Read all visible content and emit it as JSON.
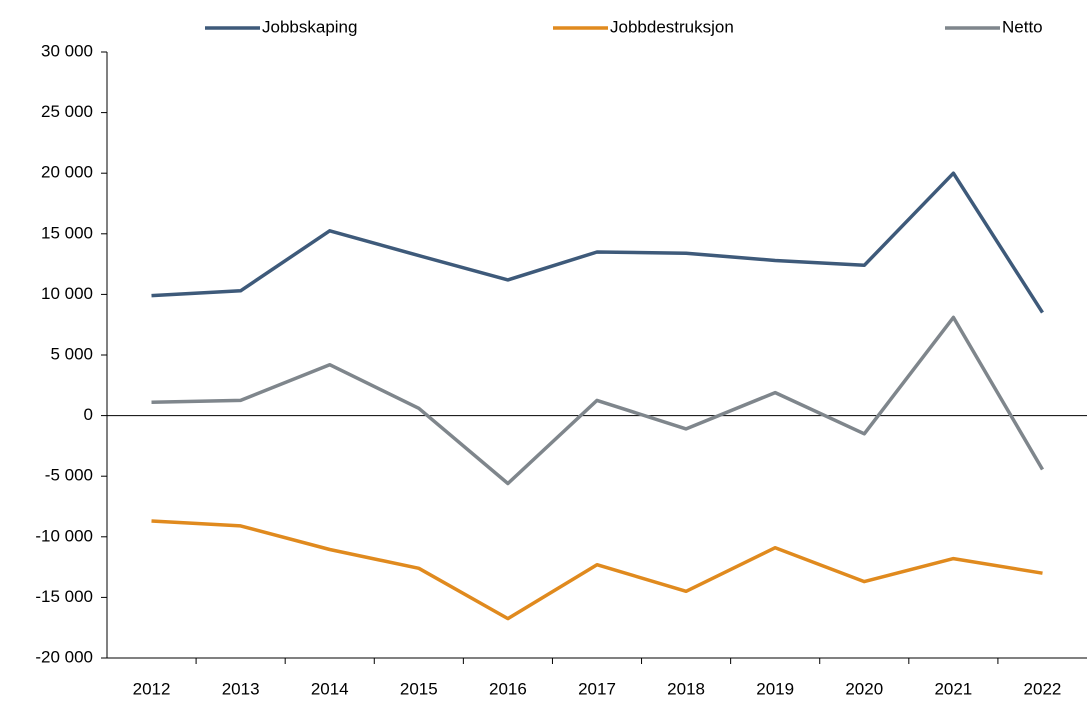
{
  "chart_data": {
    "type": "line",
    "categories": [
      "2012",
      "2013",
      "2014",
      "2015",
      "2016",
      "2017",
      "2018",
      "2019",
      "2020",
      "2021",
      "2022"
    ],
    "series": [
      {
        "name": "Jobbskaping",
        "color": "#3e5a7a",
        "values": [
          9900,
          10300,
          15250,
          13200,
          11200,
          13500,
          13400,
          12800,
          12400,
          20000,
          8500
        ]
      },
      {
        "name": "Jobbdestruksjon",
        "color": "#e08a1e",
        "values": [
          -8700,
          -9100,
          -11050,
          -12600,
          -16750,
          -12300,
          -14500,
          -10900,
          -13700,
          -11800,
          -13000
        ]
      },
      {
        "name": "Netto",
        "color": "#7f868c",
        "values": [
          1100,
          1250,
          4200,
          600,
          -5600,
          1250,
          -1100,
          1900,
          -1500,
          8100,
          -4450
        ]
      }
    ],
    "ylim": [
      -20000,
      30000
    ],
    "yticks": [
      {
        "value": -20000,
        "label": "-20 000"
      },
      {
        "value": -15000,
        "label": "-15 000"
      },
      {
        "value": -10000,
        "label": "-10 000"
      },
      {
        "value": -5000,
        "label": "-5 000"
      },
      0,
      {
        "value": 5000,
        "label": "5 000"
      },
      {
        "value": 10000,
        "label": "10 000"
      },
      {
        "value": 15000,
        "label": "15 000"
      },
      {
        "value": 20000,
        "label": "20 000"
      },
      {
        "value": 25000,
        "label": "25 000"
      },
      {
        "value": 30000,
        "label": "30 000"
      }
    ],
    "grid": false,
    "legend": "top"
  }
}
